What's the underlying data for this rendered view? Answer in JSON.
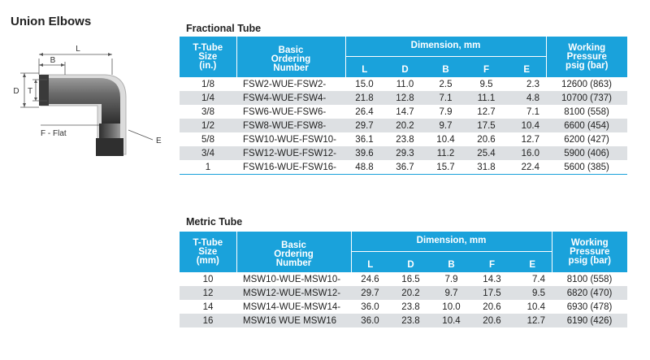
{
  "page_title": "Union Elbows",
  "diagram": {
    "labels": {
      "l": "L",
      "b": "B",
      "d": "D",
      "t": "T",
      "flat": "F - Flat",
      "e": "E"
    }
  },
  "fractional": {
    "title": "Fractional Tube",
    "headers": {
      "size": [
        "T-Tube",
        "Size",
        "(in.)"
      ],
      "ordering": [
        "Basic",
        "Ordering",
        "Number"
      ],
      "dimension": "Dimension, mm",
      "pressure": [
        "Working",
        "Pressure",
        "psig (bar)"
      ],
      "dims": [
        "L",
        "D",
        "B",
        "F",
        "E"
      ]
    },
    "rows": [
      {
        "size": "1/8",
        "order": "FSW2-WUE-FSW2-",
        "l": "15.0",
        "d": "11.0",
        "b": "2.5",
        "f": "9.5",
        "e": "2.3",
        "p": "12600 (863)"
      },
      {
        "size": "1/4",
        "order": "FSW4-WUE-FSW4-",
        "l": "21.8",
        "d": "12.8",
        "b": "7.1",
        "f": "11.1",
        "e": "4.8",
        "p": "10700 (737)"
      },
      {
        "size": "3/8",
        "order": "FSW6-WUE-FSW6-",
        "l": "26.4",
        "d": "14.7",
        "b": "7.9",
        "f": "12.7",
        "e": "7.1",
        "p": "8100 (558)"
      },
      {
        "size": "1/2",
        "order": "FSW8-WUE-FSW8-",
        "l": "29.7",
        "d": "20.2",
        "b": "9.7",
        "f": "17.5",
        "e": "10.4",
        "p": "6600 (454)"
      },
      {
        "size": "5/8",
        "order": "FSW10-WUE-FSW10-",
        "l": "36.1",
        "d": "23.8",
        "b": "10.4",
        "f": "20.6",
        "e": "12.7",
        "p": "6200 (427)"
      },
      {
        "size": "3/4",
        "order": "FSW12-WUE-FSW12-",
        "l": "39.6",
        "d": "29.3",
        "b": "11.2",
        "f": "25.4",
        "e": "16.0",
        "p": "5900 (406)"
      },
      {
        "size": "1",
        "order": "FSW16-WUE-FSW16-",
        "l": "48.8",
        "d": "36.7",
        "b": "15.7",
        "f": "31.8",
        "e": "22.4",
        "p": "5600 (385)"
      }
    ]
  },
  "metric": {
    "title": "Metric Tube",
    "headers": {
      "size": [
        "T-Tube",
        "Size",
        "(mm)"
      ],
      "ordering": [
        "Basic",
        "Ordering",
        "Number"
      ],
      "dimension": "Dimension, mm",
      "pressure": [
        "Working",
        "Pressure",
        "psig (bar)"
      ],
      "dims": [
        "L",
        "D",
        "B",
        "F",
        "E"
      ]
    },
    "rows": [
      {
        "size": "10",
        "order": "MSW10-WUE-MSW10-",
        "l": "24.6",
        "d": "16.5",
        "b": "7.9",
        "f": "14.3",
        "e": "7.4",
        "p": "8100 (558)"
      },
      {
        "size": "12",
        "order": "MSW12-WUE-MSW12-",
        "l": "29.7",
        "d": "20.2",
        "b": "9.7",
        "f": "17.5",
        "e": "9.5",
        "p": "6820 (470)"
      },
      {
        "size": "14",
        "order": "MSW14-WUE-MSW14-",
        "l": "36.0",
        "d": "23.8",
        "b": "10.0",
        "f": "20.6",
        "e": "10.4",
        "p": "6930 (478)"
      },
      {
        "size": "16",
        "order": "MSW16 WUE MSW16",
        "l": "36.0",
        "d": "23.8",
        "b": "10.4",
        "f": "20.6",
        "e": "12.7",
        "p": "6190 (426)"
      }
    ]
  },
  "colors": {
    "header_bg": "#1aa2db",
    "row_alt": "#dde0e3",
    "text": "#222222"
  }
}
